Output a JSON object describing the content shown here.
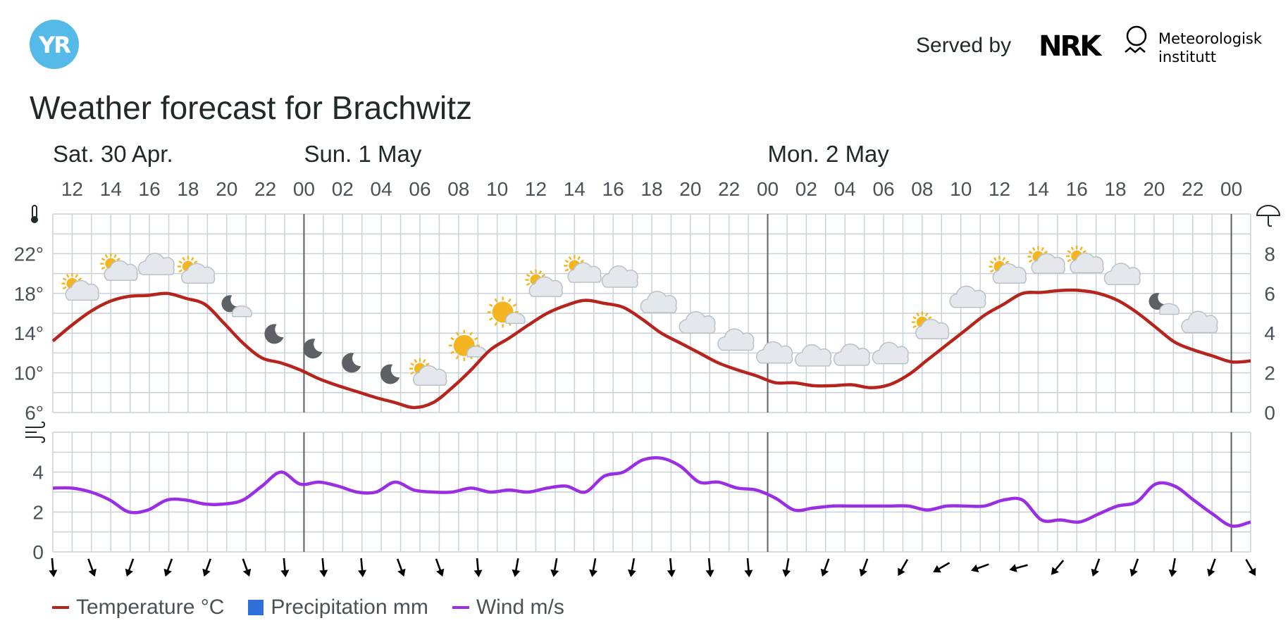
{
  "header": {
    "logo_text": "YR",
    "served_by": "Served by",
    "nrk_logo": "NRK",
    "met_name_line1": "Meteorologisk",
    "met_name_line2": "institutt",
    "title": "Weather forecast for Brachwitz"
  },
  "legend": {
    "temperature": "Temperature °C",
    "precipitation": "Precipitation mm",
    "wind": "Wind m/s"
  },
  "colors": {
    "temperature": "#b5251d",
    "precipitation": "#2e6fd8",
    "wind": "#9a2ee2",
    "grid": "#c9d2d9",
    "day_divider": "#5c6166",
    "text": "#21292b",
    "sun": "#f5b521",
    "cloud": "#e4e8ec",
    "moon": "#5d6166"
  },
  "chart_data": {
    "type": "line",
    "days": [
      {
        "label": "Sat. 30 Apr.",
        "start_index": 0
      },
      {
        "label": "Sun. 1 May",
        "start_index": 13
      },
      {
        "label": "Mon. 2 May",
        "start_index": 37
      }
    ],
    "hour_labels": [
      "12",
      "14",
      "16",
      "18",
      "20",
      "22",
      "00",
      "02",
      "04",
      "06",
      "08",
      "10",
      "12",
      "14",
      "16",
      "18",
      "20",
      "22",
      "00",
      "02",
      "04",
      "06",
      "08",
      "10",
      "12",
      "14",
      "16",
      "18",
      "20",
      "22",
      "00"
    ],
    "temperature": {
      "name": "Temperature °C",
      "y_ticks": [
        "6°",
        "10°",
        "14°",
        "18°",
        "22°"
      ],
      "ylim": [
        6,
        26
      ],
      "values": [
        13.2,
        14.8,
        16.2,
        17.2,
        17.7,
        17.8,
        18.0,
        17.5,
        16.9,
        15.0,
        13.0,
        11.5,
        11.0,
        10.3,
        9.4,
        8.7,
        8.1,
        7.5,
        7.0,
        6.5,
        7.0,
        8.5,
        10.3,
        12.3,
        13.5,
        14.8,
        16.0,
        16.8,
        17.3,
        17.0,
        16.6,
        15.4,
        14.0,
        13.0,
        12.0,
        11.0,
        10.3,
        9.7,
        9.0,
        9.0,
        8.7,
        8.7,
        8.8,
        8.5,
        8.8,
        9.8,
        11.3,
        12.8,
        14.3,
        15.8,
        16.9,
        18.0,
        18.1,
        18.3,
        18.3,
        18.0,
        17.3,
        16.1,
        14.6,
        13.1,
        12.3,
        11.7,
        11.1,
        11.2
      ]
    },
    "precipitation": {
      "name": "Precipitation mm",
      "y_ticks": [
        "0",
        "2",
        "4",
        "6",
        "8"
      ],
      "ylim": [
        0,
        10
      ],
      "values": []
    },
    "wind": {
      "name": "Wind m/s",
      "y_ticks": [
        "0",
        "2",
        "4"
      ],
      "ylim": [
        0,
        6
      ],
      "values": [
        3.2,
        3.2,
        3.0,
        2.6,
        2.0,
        2.1,
        2.6,
        2.6,
        2.4,
        2.4,
        2.6,
        3.3,
        4.0,
        3.4,
        3.5,
        3.3,
        3.0,
        3.0,
        3.5,
        3.1,
        3.0,
        3.0,
        3.2,
        3.0,
        3.1,
        3.0,
        3.2,
        3.3,
        3.0,
        3.8,
        4.0,
        4.6,
        4.7,
        4.3,
        3.5,
        3.5,
        3.2,
        3.1,
        2.7,
        2.1,
        2.2,
        2.3,
        2.3,
        2.3,
        2.3,
        2.3,
        2.1,
        2.3,
        2.3,
        2.3,
        2.6,
        2.6,
        1.6,
        1.6,
        1.5,
        1.9,
        2.3,
        2.5,
        3.4,
        3.3,
        2.6,
        1.9,
        1.3,
        1.5
      ]
    },
    "weather_symbols": [
      "partly-cloudy-day",
      "partly-cloudy-day",
      "cloudy",
      "partly-cloudy-day",
      "partly-cloudy-night",
      "clear-night",
      "clear-night",
      "clear-night",
      "clear-night",
      "partly-cloudy-day",
      "fair-day",
      "fair-day",
      "partly-cloudy-day",
      "partly-cloudy-day",
      "cloudy",
      "cloudy",
      "cloudy",
      "cloudy",
      "cloudy",
      "cloudy",
      "cloudy",
      "cloudy",
      "partly-cloudy-day",
      "cloudy",
      "partly-cloudy-day",
      "partly-cloudy-day",
      "partly-cloudy-day",
      "cloudy",
      "partly-cloudy-night",
      "cloudy"
    ],
    "wind_direction_from_deg": [
      355,
      340,
      20,
      20,
      20,
      340,
      355,
      355,
      355,
      340,
      340,
      355,
      10,
      10,
      10,
      10,
      355,
      355,
      355,
      10,
      20,
      20,
      30,
      60,
      70,
      75,
      40,
      20,
      20,
      10,
      20,
      330
    ],
    "grid": true,
    "legend_position": "bottom-left"
  }
}
